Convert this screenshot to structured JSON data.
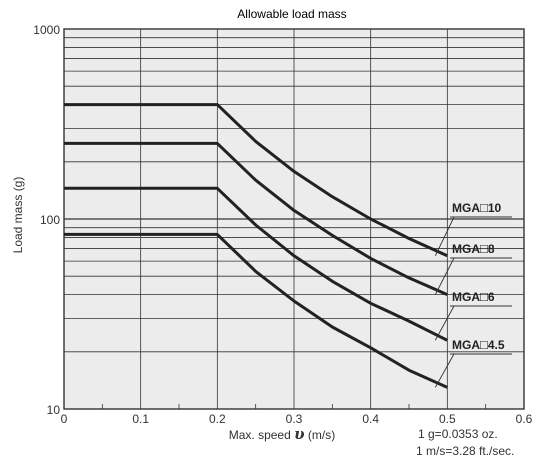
{
  "chart_data": {
    "type": "line",
    "title": "Allowable load mass",
    "xlabel": "Max. speed",
    "xlabel_symbol": "υ",
    "xlabel_unit": "(m/s)",
    "ylabel": "Load mass (g)",
    "xlim": [
      0,
      0.6
    ],
    "ylim": [
      10,
      1000
    ],
    "yscale": "log",
    "grid": true,
    "x_ticks": [
      "0",
      "0.1",
      "0.2",
      "0.3",
      "0.4",
      "0.5",
      "0.6"
    ],
    "y_ticks": [
      "10",
      "100",
      "1000"
    ],
    "series": [
      {
        "name": "MGA□10",
        "x": [
          0,
          0.2,
          0.25,
          0.3,
          0.35,
          0.4,
          0.45,
          0.5
        ],
        "y": [
          400,
          400,
          256,
          178,
          131,
          100,
          79,
          64
        ]
      },
      {
        "name": "MGA□8",
        "x": [
          0,
          0.2,
          0.25,
          0.3,
          0.35,
          0.4,
          0.45,
          0.5
        ],
        "y": [
          250,
          250,
          160,
          111,
          82,
          62,
          49,
          40
        ]
      },
      {
        "name": "MGA□6",
        "x": [
          0,
          0.2,
          0.25,
          0.3,
          0.35,
          0.4,
          0.45,
          0.5
        ],
        "y": [
          145,
          145,
          93,
          64,
          47,
          36,
          29,
          23
        ]
      },
      {
        "name": "MGA□4.5",
        "x": [
          0,
          0.2,
          0.25,
          0.3,
          0.35,
          0.4,
          0.45,
          0.5
        ],
        "y": [
          83,
          83,
          53,
          37,
          27,
          21,
          16,
          13
        ]
      }
    ],
    "label_prefix": "MGA",
    "label_sizes": [
      "10",
      "8",
      "6",
      "4.5"
    ],
    "notes": [
      "1 g=0.0353 oz.",
      "1 m/s=3.28 ft./sec."
    ],
    "colors": {
      "background": "#ececec",
      "grid": "#333333",
      "line": "#222222"
    }
  }
}
